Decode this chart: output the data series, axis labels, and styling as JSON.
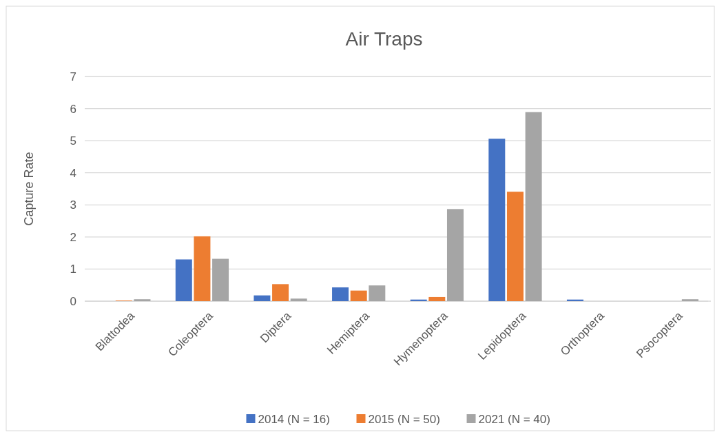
{
  "chart_data": {
    "type": "bar",
    "title": "Air Traps",
    "ylabel": "Capture Rate",
    "categories": [
      "Blattodea",
      "Coleoptera",
      "Diptera",
      "Hemiptera",
      "Hymenoptera",
      "Lepidoptera",
      "Orthoptera",
      "Psocoptera"
    ],
    "series": [
      {
        "name": "2014 (N = 16)",
        "color": "#4472c4",
        "values": [
          0,
          1.3,
          0.18,
          0.43,
          0.05,
          5.06,
          0.05,
          0
        ]
      },
      {
        "name": "2015 (N = 50)",
        "color": "#ed7d31",
        "values": [
          0.02,
          2.02,
          0.53,
          0.33,
          0.13,
          3.41,
          0,
          0
        ]
      },
      {
        "name": "2021 (N = 40)",
        "color": "#a5a5a5",
        "values": [
          0.06,
          1.32,
          0.08,
          0.49,
          2.87,
          5.89,
          0,
          0.06
        ]
      }
    ],
    "ylim": [
      0,
      7
    ],
    "yticks": [
      0,
      1,
      2,
      3,
      4,
      5,
      6,
      7
    ],
    "grid": "y",
    "legend": "bottom"
  }
}
